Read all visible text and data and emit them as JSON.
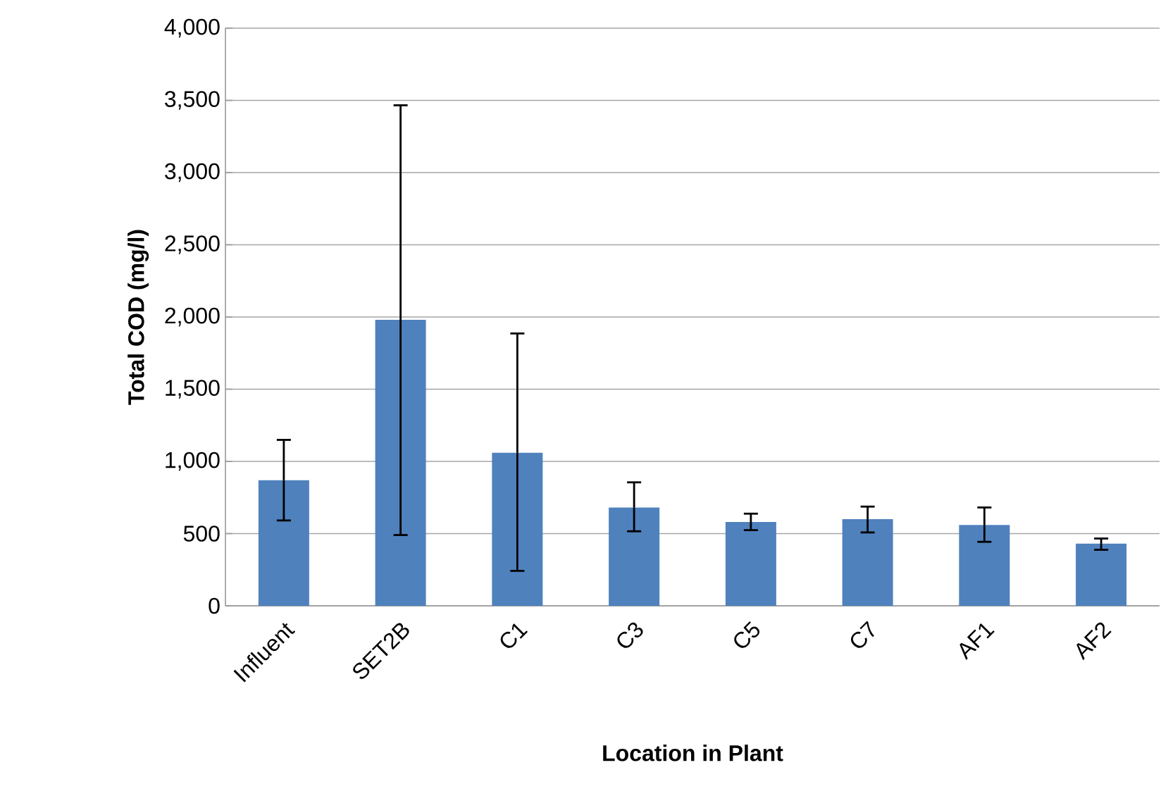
{
  "chart_data": {
    "type": "bar",
    "xlabel": "Location in Plant",
    "ylabel": "Total COD (mg/l)",
    "categories": [
      "Influent",
      "SET2B",
      "C1",
      "C3",
      "C5",
      "C7",
      "AF1",
      "AF2"
    ],
    "values": [
      870,
      1980,
      1060,
      680,
      580,
      600,
      560,
      430
    ],
    "errors": [
      [
        591,
        1149
      ],
      [
        490,
        3466
      ],
      [
        242,
        1886
      ],
      [
        516,
        855
      ],
      [
        524,
        638
      ],
      [
        508,
        687
      ],
      [
        443,
        681
      ],
      [
        388,
        466
      ]
    ],
    "color": "#4f81bd",
    "ylim": [
      0,
      4000
    ],
    "yticks": [
      {
        "value": 0,
        "label": "0"
      },
      {
        "value": 500,
        "label": "500"
      },
      {
        "value": 1000,
        "label": "1,000"
      },
      {
        "value": 1500,
        "label": "1,500"
      },
      {
        "value": 2000,
        "label": "2,000"
      },
      {
        "value": 2500,
        "label": "2,500"
      },
      {
        "value": 3000,
        "label": "3,000"
      },
      {
        "value": 3500,
        "label": "3,500"
      },
      {
        "value": 4000,
        "label": "4,000"
      }
    ],
    "grid": "y"
  }
}
